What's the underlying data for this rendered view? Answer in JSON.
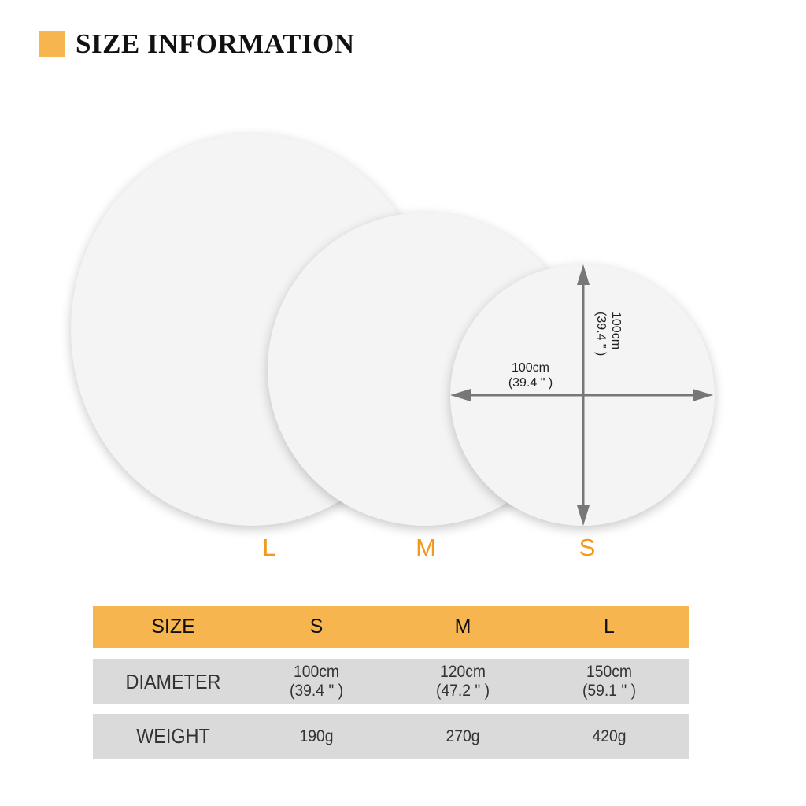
{
  "title": "SIZE INFORMATION",
  "colors": {
    "accent": "#F7B550",
    "size_label": "#F39A1E",
    "row_bg": "#DADADA",
    "arrow": "#777777"
  },
  "circle_labels": [
    "L",
    "M",
    "S"
  ],
  "dimension": {
    "horizontal": {
      "cm": "100cm",
      "inch": "(39.4 \" )"
    },
    "vertical": {
      "cm": "100cm",
      "inch": "(39.4 \" )"
    }
  },
  "table": {
    "header": [
      "SIZE",
      "S",
      "M",
      "L"
    ],
    "rows": [
      {
        "label": "DIAMETER",
        "values": [
          {
            "cm": "100cm",
            "inch": "(39.4 \" )"
          },
          {
            "cm": "120cm",
            "inch": "(47.2 \" )"
          },
          {
            "cm": "150cm",
            "inch": "(59.1 \" )"
          }
        ]
      },
      {
        "label": "WEIGHT",
        "values": [
          {
            "cm": "190g"
          },
          {
            "cm": "270g"
          },
          {
            "cm": "420g"
          }
        ]
      }
    ]
  }
}
